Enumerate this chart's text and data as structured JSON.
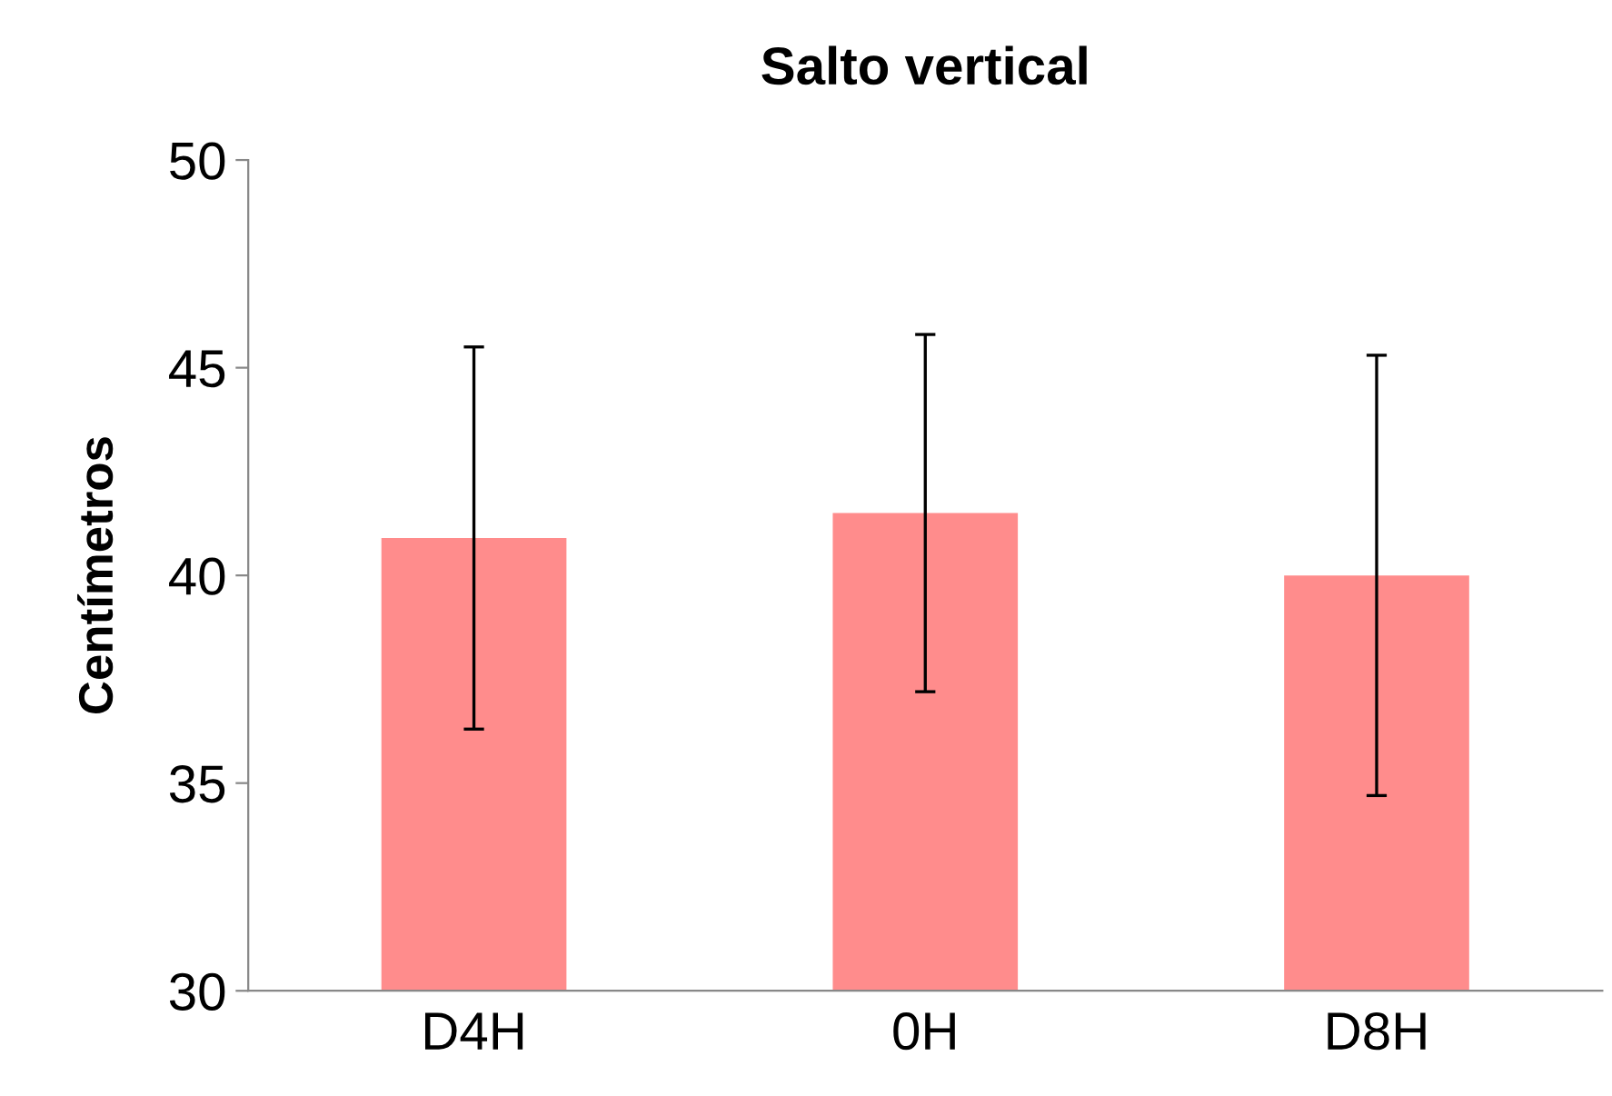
{
  "chart_data": {
    "type": "bar",
    "title": "Salto vertical",
    "ylabel": "Centímetros",
    "categories": [
      "D4H",
      "0H",
      "D8H"
    ],
    "values": [
      40.9,
      41.5,
      40.0
    ],
    "errors": [
      4.6,
      4.3,
      5.3
    ],
    "color": "#ff8c8c",
    "ylim": [
      30,
      50
    ],
    "yticks": [
      30,
      35,
      40,
      45,
      50
    ],
    "grid": false,
    "legend": false
  }
}
